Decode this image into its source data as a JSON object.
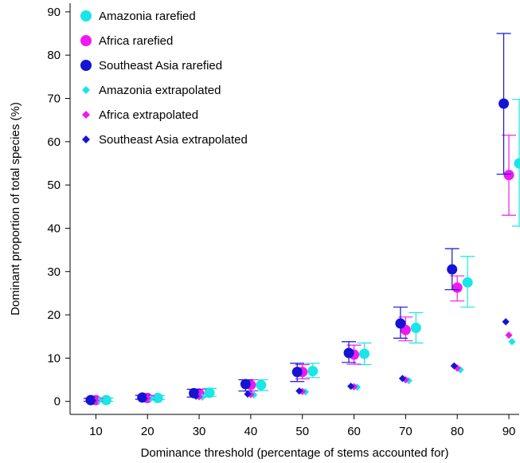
{
  "chart_data": {
    "type": "scatter",
    "xlabel": "Dominance threshold (percentage of stems accounted for)",
    "ylabel": "Dominant proportion of total species (%)",
    "x": [
      10,
      20,
      30,
      40,
      50,
      60,
      70,
      80,
      90
    ],
    "x_ticks": [
      "10",
      "20",
      "30",
      "40",
      "50",
      "60",
      "70",
      "80",
      "90"
    ],
    "y_ticks": [
      "0",
      "10",
      "20",
      "30",
      "40",
      "50",
      "60",
      "70",
      "80",
      "90"
    ],
    "xlim": [
      5,
      92
    ],
    "ylim": [
      -3,
      92
    ],
    "grid": false,
    "legend_position": "top-left",
    "series": [
      {
        "name": "Amazonia rarefied",
        "marker": "circle",
        "color": "#19e6e6",
        "values": [
          0.3,
          0.8,
          2.0,
          3.8,
          7.0,
          11.0,
          17.0,
          27.5,
          55.0
        ],
        "err_low": [
          0.0,
          0.4,
          1.2,
          2.5,
          5.5,
          8.5,
          13.5,
          21.8,
          40.5
        ],
        "err_high": [
          0.8,
          1.4,
          3.0,
          5.0,
          8.8,
          13.5,
          20.5,
          33.5,
          69.8
        ]
      },
      {
        "name": "Africa rarefied",
        "marker": "circle",
        "color": "#f019f0",
        "values": [
          0.3,
          0.8,
          1.8,
          3.8,
          6.8,
          10.8,
          16.5,
          26.3,
          52.3
        ],
        "err_low": [
          0.0,
          0.4,
          1.0,
          2.4,
          5.2,
          8.6,
          14.0,
          23.2,
          43.0
        ],
        "err_high": [
          0.7,
          1.3,
          2.8,
          5.0,
          8.5,
          13.0,
          19.5,
          29.0,
          61.5
        ]
      },
      {
        "name": "Southeast Asia rarefied",
        "marker": "circle",
        "color": "#1414d2",
        "values": [
          0.3,
          0.9,
          1.9,
          4.0,
          6.8,
          11.2,
          18.0,
          30.5,
          68.8
        ],
        "err_low": [
          0.0,
          0.5,
          1.0,
          2.4,
          4.6,
          9.0,
          14.6,
          25.8,
          52.5
        ],
        "err_high": [
          0.7,
          1.4,
          2.8,
          5.0,
          8.8,
          13.8,
          21.8,
          35.3,
          85.0
        ]
      },
      {
        "name": "Amazonia extrapolated",
        "marker": "diamond",
        "color": "#19e6e6",
        "values": [
          0.2,
          0.6,
          1.0,
          1.5,
          2.2,
          3.3,
          4.8,
          7.3,
          13.8
        ]
      },
      {
        "name": "Africa extrapolated",
        "marker": "diamond",
        "color": "#f019f0",
        "values": [
          0.2,
          0.7,
          1.1,
          1.6,
          2.3,
          3.4,
          5.0,
          7.7,
          15.3
        ]
      },
      {
        "name": "Southeast Asia extrapolated",
        "marker": "diamond",
        "color": "#1414d2",
        "values": [
          0.2,
          0.7,
          1.2,
          1.7,
          2.4,
          3.5,
          5.3,
          8.2,
          18.4
        ]
      }
    ]
  }
}
